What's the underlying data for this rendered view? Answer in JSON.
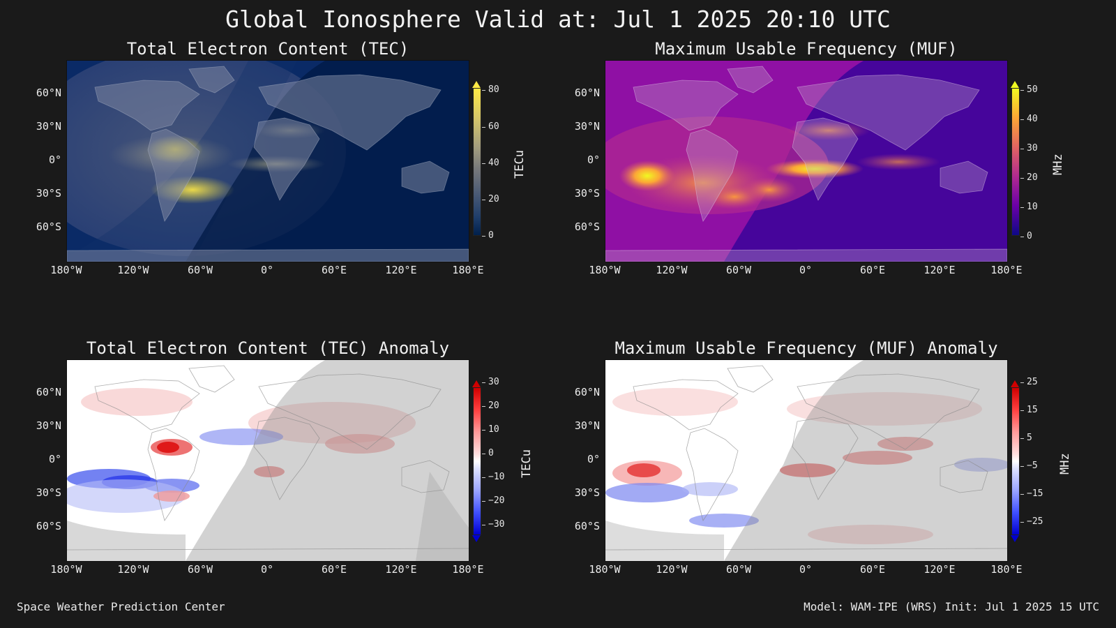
{
  "title": "Global Ionosphere Valid at: Jul 1 2025 20:10 UTC",
  "lat_ticks": [
    "60°N",
    "30°N",
    "0°",
    "30°S",
    "60°S"
  ],
  "lon_ticks": [
    "180°W",
    "120°W",
    "60°W",
    "0°",
    "60°E",
    "120°E",
    "180°E"
  ],
  "panels": [
    {
      "title": "Total Electron Content (TEC)",
      "colorbar": {
        "label": "TECu",
        "ticks": [
          "80",
          "60",
          "40",
          "20",
          "0"
        ],
        "colormap": "cividis",
        "range": [
          0,
          80
        ]
      },
      "colors": {
        "low": "#00204c",
        "mid": "#7c7b78",
        "high": "#ffe945"
      }
    },
    {
      "title": "Maximum Usable Frequency (MUF)",
      "colorbar": {
        "label": "MHz",
        "ticks": [
          "50",
          "40",
          "30",
          "20",
          "10",
          "0"
        ],
        "colormap": "plasma",
        "range": [
          0,
          50
        ]
      },
      "colors": {
        "low": "#0d0887",
        "mid": "#cc4778",
        "high": "#f0f921"
      }
    },
    {
      "title": "Total Electron Content (TEC) Anomaly",
      "colorbar": {
        "label": "TECu",
        "ticks": [
          "30",
          "20",
          "10",
          "0",
          "−10",
          "−20",
          "−30"
        ],
        "colormap": "bwr",
        "range": [
          -30,
          30
        ]
      },
      "colors": {
        "low": "#0000ff",
        "mid": "#ffffff",
        "high": "#ff0000"
      }
    },
    {
      "title": "Maximum Usable Frequency (MUF) Anomaly",
      "colorbar": {
        "label": "MHz",
        "ticks": [
          "25",
          "15",
          "5",
          "−5",
          "−15",
          "−25"
        ],
        "colormap": "bwr",
        "range": [
          -25,
          25
        ]
      },
      "colors": {
        "low": "#0000ff",
        "mid": "#ffffff",
        "high": "#ff0000"
      }
    }
  ],
  "footer": {
    "left": "Space Weather Prediction Center",
    "right": "Model: WAM-IPE (WRS) Init: Jul 1 2025 15 UTC"
  }
}
